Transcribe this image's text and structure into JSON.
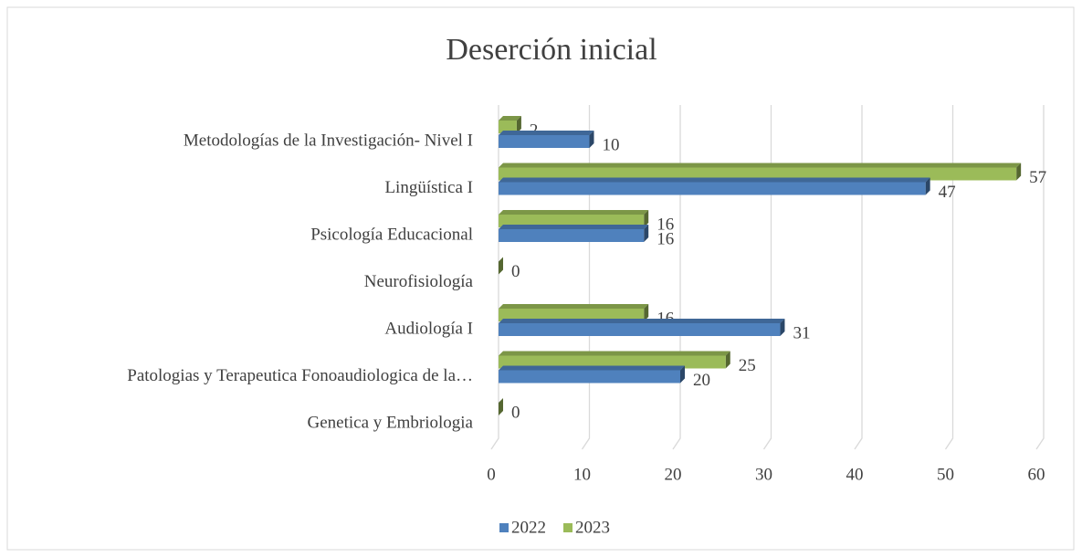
{
  "chart_data": {
    "type": "bar",
    "orientation": "horizontal",
    "title": "Deserción inicial",
    "categories": [
      "Metodologías de la Investigación- Nivel I",
      "Lingüística I",
      "Psicología Educacional",
      "Neurofisiología",
      "Audiología I",
      "Patologias y Terapeutica Fonoaudiologica de la…",
      "Genetica y Embriologia"
    ],
    "series": [
      {
        "name": "2023",
        "color": "#9bbb59",
        "values": [
          2,
          57,
          16,
          0,
          16,
          25,
          0
        ]
      },
      {
        "name": "2022",
        "color": "#4f81bd",
        "values": [
          10,
          47,
          16,
          null,
          31,
          20,
          null
        ]
      }
    ],
    "xlim": [
      0,
      60
    ],
    "xticks": [
      0,
      10,
      20,
      30,
      40,
      50,
      60
    ],
    "grid": true,
    "legend": "bottom"
  }
}
